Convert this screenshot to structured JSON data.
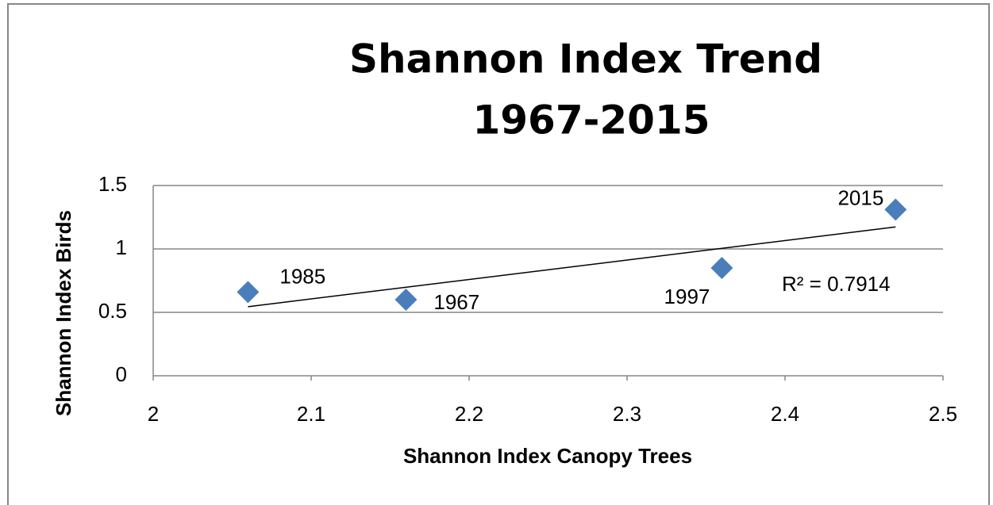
{
  "chart_data": {
    "type": "scatter",
    "title": [
      "Shannon Index Trend",
      "1967-2015"
    ],
    "xlabel": "Shannon Index Canopy Trees",
    "ylabel": "Shannon Index Birds",
    "series": [
      {
        "name": "Shannon Index",
        "color": "#4a7ebb",
        "x": [
          2.06,
          2.16,
          2.36,
          2.47
        ],
        "values": [
          0.66,
          0.6,
          0.85,
          1.31
        ],
        "labels": [
          "1985",
          "1967",
          "1997",
          "2015"
        ]
      }
    ],
    "trendline": "linear",
    "annotation": "R² = 0.7914",
    "xlim": [
      2,
      2.5
    ],
    "xticks": [
      2,
      2.1,
      2.2,
      2.3,
      2.4,
      2.5
    ],
    "ylim": [
      0,
      1.5
    ],
    "yticks": [
      0,
      0.5,
      1,
      1.5
    ],
    "grid": true
  }
}
